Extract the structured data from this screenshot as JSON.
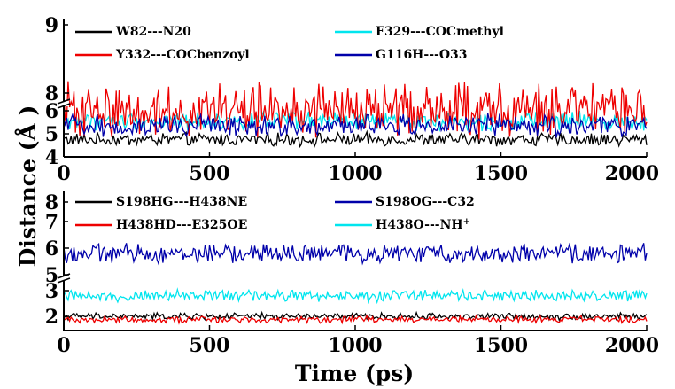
{
  "chart_data": [
    {
      "type": "line",
      "xlim": [
        0,
        2000
      ],
      "ylim": [
        4,
        9
      ],
      "axis_break": [
        6.3,
        6.9
      ],
      "x_ticks": [
        "0",
        "500",
        "1000",
        "1500",
        "2000"
      ],
      "y_ticks": [
        "4",
        "5",
        "6",
        "8",
        "9"
      ],
      "legend_placement": "top",
      "series": [
        {
          "name": "W82---N20",
          "color": "#000000",
          "mean": 4.75,
          "amplitude": 0.22,
          "points": 400
        },
        {
          "name": "F329---COCmethyl",
          "color": "#00e5ee",
          "mean": 5.55,
          "amplitude": 0.3,
          "points": 400
        },
        {
          "name": "Y332---COCbenzoyl",
          "color": "#ee0000",
          "mean": 7.75,
          "amplitude": 0.3,
          "points": 400
        },
        {
          "name": "G116H---O33",
          "color": "#0000aa",
          "mean": 5.35,
          "amplitude": 0.38,
          "points": 400
        }
      ]
    },
    {
      "type": "line",
      "xlim": [
        0,
        2000
      ],
      "ylim": [
        1.5,
        8.5
      ],
      "axis_break": [
        3.5,
        5.0
      ],
      "x_ticks": [
        "0",
        "500",
        "1000",
        "1500",
        "2000"
      ],
      "y_ticks": [
        "2",
        "3",
        "5",
        "6",
        "7",
        "8"
      ],
      "legend_placement": "top",
      "series": [
        {
          "name": "S198HG---H438NE",
          "color": "#000000",
          "mean": 2.0,
          "amplitude": 0.1,
          "points": 400
        },
        {
          "name": "S198OG---C32",
          "color": "#0000aa",
          "mean": 5.8,
          "amplitude": 0.28,
          "points": 400
        },
        {
          "name": "H438HD---E325OE",
          "color": "#ee0000",
          "mean": 1.88,
          "amplitude": 0.1,
          "points": 400
        },
        {
          "name": "H438O---NH",
          "name_superscript": "+",
          "color": "#00e5ee",
          "mean": 2.8,
          "amplitude": 0.17,
          "points": 400
        }
      ]
    }
  ],
  "ylabel_text": "Distance (",
  "ylabel_unit": "Å",
  "ylabel_close": " )",
  "xlabel": "Time (ps)"
}
